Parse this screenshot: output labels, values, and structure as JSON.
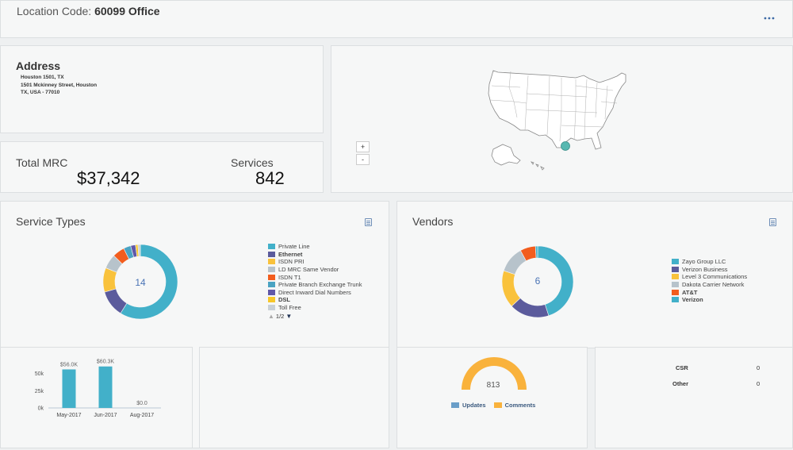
{
  "header": {
    "label": "Location Code:",
    "code": "60099 Office",
    "menu_icon": "more-dots-icon"
  },
  "address": {
    "title": "Address",
    "line1": "Houston 1501, TX",
    "line2": "1501 Mckinney Street, Houston",
    "line3": "TX, USA - 77010"
  },
  "map": {
    "zoom_in_label": "+",
    "zoom_out_label": "-",
    "marker_color": "#57b8b1"
  },
  "summary": {
    "mrc_label": "Total MRC",
    "mrc_value": "$37,342",
    "services_label": "Services",
    "services_value": "842"
  },
  "service_types": {
    "title": "Service Types",
    "center_value": "14",
    "legend": [
      {
        "label": "Private Line",
        "color": "#42b0c9",
        "bold": false
      },
      {
        "label": "Ethernet",
        "color": "#5b5b9c",
        "bold": true
      },
      {
        "label": "ISDN PRI",
        "color": "#f9c23c",
        "bold": false
      },
      {
        "label": "LD MRC Same Vendor",
        "color": "#b7c3cb",
        "bold": false
      },
      {
        "label": "ISDN T1",
        "color": "#f25d1e",
        "bold": false
      },
      {
        "label": "Private Branch Exchange Trunk",
        "color": "#4aa3c2",
        "bold": false
      },
      {
        "label": "Direct Inward Dial Numbers",
        "color": "#6058a8",
        "bold": false
      },
      {
        "label": "DSL",
        "color": "#f7c72a",
        "bold": true
      },
      {
        "label": "Toll Free",
        "color": "#c8d0d6",
        "bold": false
      }
    ],
    "pager": "1/2"
  },
  "vendors": {
    "title": "Vendors",
    "center_value": "6",
    "legend": [
      {
        "label": "Zayo Group LLC",
        "color": "#42b0c9",
        "bold": false
      },
      {
        "label": "Verizon Business",
        "color": "#5b5b9c",
        "bold": false
      },
      {
        "label": "Level 3 Communications",
        "color": "#f9c23c",
        "bold": false
      },
      {
        "label": "Dakota Carrier Network",
        "color": "#b7c3cb",
        "bold": false
      },
      {
        "label": "AT&T",
        "color": "#f25d1e",
        "bold": true
      },
      {
        "label": "Verizon",
        "color": "#42b0c9",
        "bold": true
      }
    ]
  },
  "gauge": {
    "value": "813",
    "legend": [
      {
        "label": "Updates",
        "color": "#6a9ec8"
      },
      {
        "label": "Comments",
        "color": "#f9b23c"
      }
    ]
  },
  "status_table": {
    "rows": [
      {
        "label": "CSR",
        "value": "0"
      },
      {
        "label": "Other",
        "value": "0"
      }
    ]
  },
  "chart_data": [
    {
      "type": "pie",
      "title": "Service Types",
      "total": 14,
      "categories": [
        "Private Line",
        "Ethernet",
        "ISDN PRI",
        "LD MRC Same Vendor",
        "ISDN T1",
        "Private Branch Exchange Trunk",
        "Direct Inward Dial Numbers",
        "DSL",
        "Toll Free"
      ],
      "values": [
        56,
        11,
        10,
        6,
        5,
        3,
        2,
        1,
        1
      ],
      "legend": "right"
    },
    {
      "type": "pie",
      "title": "Vendors",
      "total": 6,
      "categories": [
        "Zayo Group LLC",
        "Verizon Business",
        "Level 3 Communications",
        "Dakota Carrier Network",
        "AT&T",
        "Verizon"
      ],
      "values": [
        45,
        18,
        17,
        12,
        7,
        1
      ],
      "legend": "right"
    },
    {
      "type": "bar",
      "categories": [
        "May-2017",
        "Jun-2017",
        "Aug-2017"
      ],
      "values": [
        56000,
        60300,
        0
      ],
      "data_labels": [
        "$56.0K",
        "$60.3K",
        "$0.0"
      ],
      "ylim": [
        0,
        60000
      ],
      "yticks": [
        "0k",
        "25k",
        "50k"
      ],
      "grid": false
    }
  ]
}
